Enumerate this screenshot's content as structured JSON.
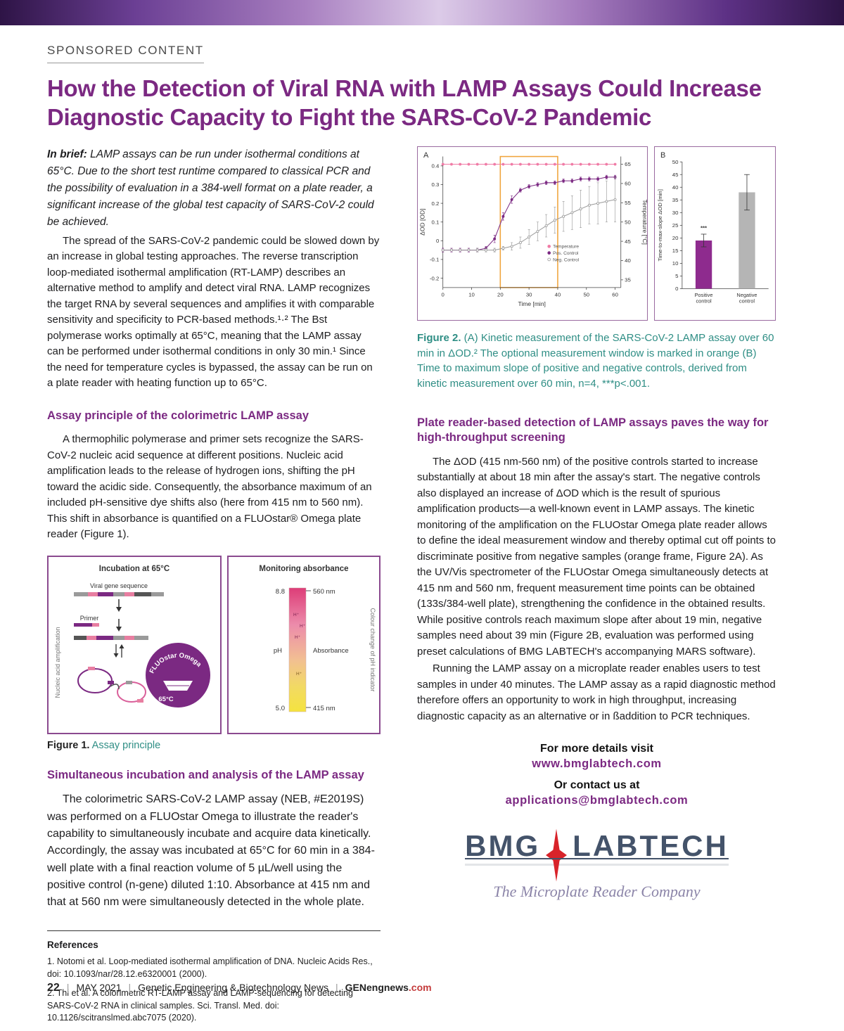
{
  "page": {
    "sponsored_label": "SPONSORED CONTENT",
    "title": "How the Detection of Viral RNA with LAMP Assays Could Increase Diagnostic Capacity to Fight the SARS-CoV-2 Pandemic",
    "footer": {
      "page_number": "22",
      "separator": "|",
      "issue": "MAY 2021",
      "publication": "Genetic Engineering & Biotechnology News",
      "site_name": "GENengnews",
      "site_tld": ".com"
    }
  },
  "left_column": {
    "in_brief_label": "In brief:",
    "in_brief_text": " LAMP assays can be run under isothermal conditions at 65°C. Due to the short test runtime compared to classical PCR and the possibility of evaluation in a 384-well format on a plate reader, a significant increase of the global test capacity of SARS-CoV-2 could be achieved.",
    "para1": "The spread of the SARS-CoV-2 pandemic could be slowed down by an increase in global testing approaches. The reverse transcription loop-mediated isothermal amplification (RT-LAMP) describes an alternative method to amplify and detect viral RNA. LAMP recognizes the target RNA by several sequences and amplifies it with comparable sensitivity and specificity to PCR-based methods.¹·² The Bst polymerase works optimally at 65°C, meaning that the LAMP assay can be performed under isothermal conditions in only 30 min.¹  Since the need for temperature cycles is bypassed, the assay can be run on a plate reader with heating function up to 65°C.",
    "section1_heading": "Assay principle of the colorimetric LAMP assay",
    "section1_para": "A thermophilic polymerase and primer sets recognize the SARS-CoV-2 nucleic acid sequence at different positions. Nucleic acid amplification leads to the release of hydrogen ions, shifting the pH toward the acidic side. Consequently, the absorbance maximum of an included pH-sensitive dye shifts also (here from 415 nm to 560 nm). This shift in absorbance is quantified on a FLUOstar® Omega plate reader (Figure 1).",
    "section2_heading": "Simultaneous incubation and analysis of the LAMP assay",
    "section2_para": "The colorimetric SARS-CoV-2 LAMP assay (NEB, #E2019S) was performed on a FLUOstar Omega to illustrate the reader's capability to simultaneously incubate and acquire data kinetically. Accordingly, the assay was incubated at 65°C for 60 min in a 384-well plate with a final reaction volume of 5 µL/well using the positive control (n-gene) diluted 1:10. Absorbance at 415 nm and that at 560 nm were simultaneously detected in the whole plate.",
    "references_heading": "References",
    "reference1": "1. Notomi et al. Loop-mediated isothermal amplification of DNA. Nucleic Acids Res., doi: 10.1093/nar/28.12.e6320001 (2000).",
    "reference2": "2. Thi et al. A colorimetric RT-LAMP assay and LAMP-sequencing for detecting SARS-CoV-2 RNA in clinical samples. Sci. Transl. Med. doi: 10.1126/scitranslmed.abc7075 (2020)."
  },
  "figure1": {
    "caption_label": "Figure 1.",
    "caption_text": "Assay principle",
    "left_panel_title": "Incubation at 65°C",
    "right_panel_title": "Monitoring absorbance",
    "viral_gene_label": "Viral gene sequence",
    "primer_label": "Primer",
    "left_axis_label": "Nucleic acid amplification",
    "right_axis_label": "Colour change of pH indicator",
    "reader_logo_text": "FLUOstar Omega",
    "reader_temp": "65°C",
    "ph_label": "pH",
    "ph_top_value": "8.8",
    "ph_bottom_value": "5.0",
    "wavelength_top": "560 nm",
    "wavelength_bottom": "415 nm",
    "absorbance_label": "Absorbance",
    "h_plus": "H⁺"
  },
  "figure2": {
    "panel_a_label": "A",
    "panel_b_label": "B",
    "caption_label": "Figure 2.",
    "caption_text": " (A) Kinetic measurement of the SARS-CoV-2 LAMP assay over 60 min in ΔOD.² The optional measurement window is marked in orange (B) Time to maximum slope of positive and negative controls, derived from kinetic measurement over 60 min, n=4, ***p<.001."
  },
  "right_column": {
    "section_heading": "Plate reader-based detection of LAMP assays paves the way for high-throughput screening",
    "para1": "The ΔOD (415 nm-560 nm) of the positive controls started to increase substantially at about 18 min after the assay's start. The negative controls also displayed an increase of ΔOD which is the result of spurious amplification products—a well-known event in LAMP assays. The kinetic monitoring of the amplification on the FLUOstar Omega plate reader allows to define the ideal measurement window and thereby optimal cut off points to discriminate positive from negative samples (orange frame, Figure 2A). As the UV/Vis spectrometer of the FLUOstar Omega simultaneously detects at 415 nm and 560 nm, frequent measurement time points can be obtained (133s/384-well plate), strengthening the confidence in the obtained results.  While positive controls reach maximum slope after about 19 min, negative samples need about 39 min (Figure 2B, evaluation was performed using preset calculations of BMG LABTECH's accompanying MARS software).",
    "para2": "Running the LAMP assay on a microplate reader enables users to test samples in under 40 minutes. The LAMP assay as a rapid diagnostic method therefore offers an opportunity to work in high throughput, increasing diagnostic capacity as an alternative or in ßaddition to PCR techniques.",
    "cta_line1": "For more details visit",
    "cta_link1": "www.bmglabtech.com",
    "cta_line2": "Or contact us at",
    "cta_link2": "applications@bmglabtech.com",
    "logo_bmg": "BMG",
    "logo_labtech": "LABTECH",
    "logo_tagline": "The Microplate Reader Company"
  },
  "chart_data": [
    {
      "id": "kinetic-measurement",
      "type": "line",
      "xlabel": "Time [min]",
      "ylabel_left": "ΔOD [OD]",
      "ylabel_right": "Temperature [°C]",
      "xlim": [
        0,
        62
      ],
      "ylim_left": [
        -0.25,
        0.45
      ],
      "ylim_right": [
        33,
        67
      ],
      "x_ticks": [
        0,
        10,
        20,
        30,
        40,
        50,
        60
      ],
      "y_ticks_left": [
        0.4,
        0.3,
        0.2,
        0.1,
        0,
        -0.1,
        -0.2
      ],
      "y_ticks_right": [
        65,
        60,
        55,
        50,
        45,
        40,
        35
      ],
      "measurement_window": [
        20,
        40
      ],
      "window_color": "#f0a43c",
      "series": [
        {
          "name": "Temperature",
          "axis": "right",
          "color": "#f07ca6",
          "open": false,
          "x": [
            0,
            3,
            6,
            9,
            12,
            15,
            18,
            21,
            24,
            27,
            30,
            33,
            36,
            39,
            42,
            45,
            48,
            51,
            54,
            57,
            60
          ],
          "y": [
            65,
            65,
            65,
            65,
            65,
            65,
            65,
            65,
            65,
            65,
            65,
            65,
            65,
            65,
            65,
            65,
            65,
            65,
            65,
            65,
            65
          ]
        },
        {
          "name": "Pos. Control",
          "axis": "left",
          "color": "#7b2982",
          "open": false,
          "x": [
            0,
            3,
            6,
            9,
            12,
            15,
            18,
            21,
            24,
            27,
            30,
            33,
            36,
            39,
            42,
            45,
            48,
            51,
            54,
            57,
            60
          ],
          "y": [
            -0.05,
            -0.05,
            -0.05,
            -0.05,
            -0.05,
            -0.04,
            0.01,
            0.13,
            0.22,
            0.27,
            0.29,
            0.3,
            0.31,
            0.31,
            0.32,
            0.32,
            0.33,
            0.33,
            0.33,
            0.34,
            0.34
          ],
          "err": [
            0.01,
            0.01,
            0.01,
            0.01,
            0.01,
            0.01,
            0.02,
            0.02,
            0.02,
            0.01,
            0.01,
            0.01,
            0.01,
            0.01,
            0.01,
            0.01,
            0.01,
            0.01,
            0.01,
            0.01,
            0.01
          ]
        },
        {
          "name": "Neg. Control",
          "axis": "left",
          "color": "#9a9a9a",
          "open": true,
          "x": [
            0,
            3,
            6,
            9,
            12,
            15,
            18,
            21,
            24,
            27,
            30,
            33,
            36,
            39,
            42,
            45,
            48,
            51,
            54,
            57,
            60
          ],
          "y": [
            -0.05,
            -0.05,
            -0.05,
            -0.05,
            -0.05,
            -0.05,
            -0.05,
            -0.04,
            -0.03,
            -0.01,
            0.02,
            0.05,
            0.08,
            0.11,
            0.13,
            0.15,
            0.17,
            0.19,
            0.2,
            0.21,
            0.22
          ],
          "err": [
            0,
            0,
            0,
            0,
            0.01,
            0.01,
            0.01,
            0.01,
            0.02,
            0.03,
            0.04,
            0.05,
            0.06,
            0.07,
            0.08,
            0.09,
            0.1,
            0.1,
            0.11,
            0.11,
            0.12
          ]
        }
      ]
    },
    {
      "id": "time-to-max-slope",
      "type": "bar",
      "ylabel": "Time-to-max-slope ΔOD [min]",
      "ylim": [
        0,
        50
      ],
      "y_ticks": [
        0,
        5,
        10,
        15,
        20,
        25,
        30,
        35,
        40,
        45,
        50
      ],
      "categories": [
        "Positive control",
        "Negative control"
      ],
      "values": [
        19,
        38
      ],
      "errors": [
        2.5,
        7
      ],
      "colors": [
        "#8e2b8e",
        "#b5b5b5"
      ],
      "significance": "***"
    }
  ]
}
